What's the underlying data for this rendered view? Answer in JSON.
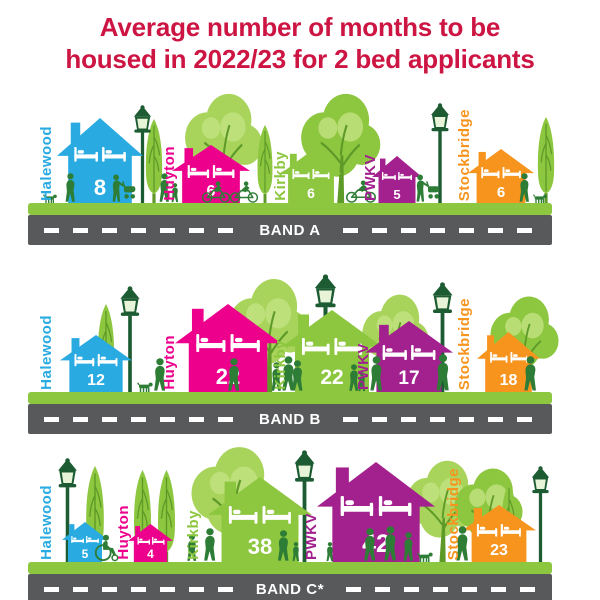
{
  "title": {
    "line1": "Average number of months to be",
    "line2": "housed in 2022/23 for 2 bed applicants",
    "color": "#cd1543"
  },
  "areas": [
    {
      "name": "Halewood",
      "color": "#29abe2"
    },
    {
      "name": "Huyton",
      "color": "#ec008c"
    },
    {
      "name": "Kirkby",
      "color": "#8dc63f"
    },
    {
      "name": "PWKV",
      "color": "#a3218e"
    },
    {
      "name": "Stockbridge",
      "color": "#f7941e"
    }
  ],
  "bands": [
    {
      "label": "BAND A",
      "values": [
        8,
        6,
        6,
        5,
        6
      ]
    },
    {
      "label": "BAND B",
      "values": [
        12,
        22,
        22,
        17,
        18
      ]
    },
    {
      "label": "BAND C*",
      "values": [
        5,
        4,
        38,
        42,
        23
      ]
    }
  ],
  "scene_colors": {
    "grass": "#8dc63f",
    "road": "#58595b",
    "road_line": "#ffffff",
    "silhouette": "#2e7d36",
    "lamp": "#1d5c33",
    "tree_mid": "#8dc63f",
    "tree_light": "#a8d45c",
    "tree_highlight": "#c3e383",
    "tree_vein": "#5d9a28",
    "bed_icon": "#ffffff",
    "house_value_text": "#ffffff",
    "band_label_text": "#ffffff"
  },
  "icons": [
    "bed-icon",
    "lamp-post",
    "tree",
    "person-silhouette",
    "dog-silhouette",
    "cyclist-silhouette",
    "pram-silhouette",
    "wheelchair-silhouette"
  ],
  "chart_data": {
    "type": "bar",
    "title": "Average number of months to be housed in 2022/23 for 2 bed applicants",
    "unit": "months",
    "categories": [
      "Halewood",
      "Huyton",
      "Kirkby",
      "PWKV",
      "Stockbridge"
    ],
    "series": [
      {
        "name": "BAND A",
        "values": [
          8,
          6,
          6,
          5,
          6
        ]
      },
      {
        "name": "BAND B",
        "values": [
          12,
          22,
          22,
          17,
          18
        ]
      },
      {
        "name": "BAND C*",
        "values": [
          5,
          4,
          38,
          42,
          23
        ]
      }
    ],
    "notes": "Values drawn as houses whose size scales with months; one row of houses per band, road sign below each row names the band."
  }
}
